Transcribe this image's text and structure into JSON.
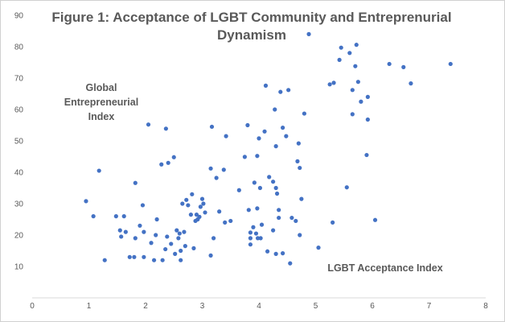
{
  "chart_data": {
    "type": "scatter",
    "title_lines": [
      "Figure 1: Acceptance of LGBT Community and Entreprenurial",
      "Dynamism"
    ],
    "ylabel_lines": [
      "Global",
      "Entrepreneurial",
      "Index"
    ],
    "xlabel": "LGBT Acceptance Index",
    "xlim": [
      0,
      8
    ],
    "ylim": [
      0,
      90
    ],
    "xticks": [
      "0",
      "1",
      "2",
      "3",
      "4",
      "5",
      "6",
      "7",
      "8"
    ],
    "yticks": [
      "10",
      "20",
      "30",
      "40",
      "50",
      "60",
      "70",
      "80",
      "90"
    ],
    "grid": false,
    "marker_color": "#4472c4",
    "points": [
      [
        0.95,
        30.8
      ],
      [
        1.08,
        26
      ],
      [
        1.18,
        40.5
      ],
      [
        1.28,
        12
      ],
      [
        1.48,
        26
      ],
      [
        1.55,
        21.5
      ],
      [
        1.57,
        19.5
      ],
      [
        1.62,
        26
      ],
      [
        1.65,
        21
      ],
      [
        1.72,
        13
      ],
      [
        1.8,
        13
      ],
      [
        1.82,
        36.6
      ],
      [
        1.82,
        19
      ],
      [
        1.9,
        23
      ],
      [
        1.95,
        29.5
      ],
      [
        1.97,
        13
      ],
      [
        1.97,
        21
      ],
      [
        2.05,
        55.2
      ],
      [
        2.1,
        17.5
      ],
      [
        2.15,
        12
      ],
      [
        2.18,
        20
      ],
      [
        2.2,
        25
      ],
      [
        2.28,
        42.5
      ],
      [
        2.3,
        12
      ],
      [
        2.35,
        15.5
      ],
      [
        2.36,
        53.9
      ],
      [
        2.38,
        19.5
      ],
      [
        2.4,
        43
      ],
      [
        2.45,
        17.2
      ],
      [
        2.5,
        44.8
      ],
      [
        2.52,
        14
      ],
      [
        2.55,
        21.5
      ],
      [
        2.58,
        19
      ],
      [
        2.6,
        20.5
      ],
      [
        2.62,
        15
      ],
      [
        2.62,
        12
      ],
      [
        2.65,
        30
      ],
      [
        2.68,
        21
      ],
      [
        2.7,
        16.5
      ],
      [
        2.72,
        31.2
      ],
      [
        2.75,
        29.5
      ],
      [
        2.8,
        26.5
      ],
      [
        2.82,
        33
      ],
      [
        2.85,
        15.8
      ],
      [
        2.88,
        24.5
      ],
      [
        2.9,
        26.5
      ],
      [
        2.92,
        25
      ],
      [
        2.95,
        25.8
      ],
      [
        2.97,
        29
      ],
      [
        3.0,
        31.5
      ],
      [
        3.02,
        30
      ],
      [
        3.05,
        27.2
      ],
      [
        3.15,
        13.5
      ],
      [
        3.15,
        41.2
      ],
      [
        3.17,
        54.5
      ],
      [
        3.2,
        19
      ],
      [
        3.25,
        38.2
      ],
      [
        3.3,
        27.5
      ],
      [
        3.38,
        40.8
      ],
      [
        3.4,
        24
      ],
      [
        3.42,
        51.5
      ],
      [
        3.5,
        24.5
      ],
      [
        3.65,
        34.3
      ],
      [
        3.75,
        44.9
      ],
      [
        3.8,
        55
      ],
      [
        3.82,
        28
      ],
      [
        3.85,
        19
      ],
      [
        3.85,
        20.8
      ],
      [
        3.85,
        17
      ],
      [
        3.9,
        22.5
      ],
      [
        3.92,
        36.7
      ],
      [
        3.95,
        20.5
      ],
      [
        3.97,
        28.5
      ],
      [
        3.97,
        45.2
      ],
      [
        3.98,
        19
      ],
      [
        4.0,
        50.8
      ],
      [
        4.02,
        35
      ],
      [
        4.03,
        19
      ],
      [
        4.05,
        23.3
      ],
      [
        4.1,
        53
      ],
      [
        4.12,
        67.6
      ],
      [
        4.15,
        14.8
      ],
      [
        4.18,
        38.5
      ],
      [
        4.25,
        21.5
      ],
      [
        4.25,
        37
      ],
      [
        4.28,
        60
      ],
      [
        4.3,
        14
      ],
      [
        4.3,
        48.3
      ],
      [
        4.3,
        35
      ],
      [
        4.32,
        33.2
      ],
      [
        4.35,
        28
      ],
      [
        4.35,
        25.5
      ],
      [
        4.38,
        65.6
      ],
      [
        4.42,
        14.2
      ],
      [
        4.42,
        54.2
      ],
      [
        4.48,
        51.5
      ],
      [
        4.52,
        66.2
      ],
      [
        4.55,
        11
      ],
      [
        4.58,
        25.5
      ],
      [
        4.65,
        24.5
      ],
      [
        4.68,
        43.5
      ],
      [
        4.7,
        49.2
      ],
      [
        4.72,
        41.4
      ],
      [
        4.72,
        20
      ],
      [
        4.75,
        31.5
      ],
      [
        4.8,
        58.7
      ],
      [
        4.88,
        84
      ],
      [
        5.05,
        16
      ],
      [
        5.25,
        68
      ],
      [
        5.3,
        24
      ],
      [
        5.32,
        68.5
      ],
      [
        5.42,
        75.8
      ],
      [
        5.45,
        79.7
      ],
      [
        5.55,
        35.2
      ],
      [
        5.6,
        78
      ],
      [
        5.65,
        58.5
      ],
      [
        5.65,
        66.2
      ],
      [
        5.7,
        73.8
      ],
      [
        5.72,
        80.6
      ],
      [
        5.75,
        68.8
      ],
      [
        5.8,
        62.5
      ],
      [
        5.9,
        45.5
      ],
      [
        5.92,
        56.8
      ],
      [
        5.92,
        64
      ],
      [
        6.05,
        24.8
      ],
      [
        6.3,
        74.5
      ],
      [
        6.55,
        73.5
      ],
      [
        6.68,
        68.3
      ],
      [
        7.38,
        74.5
      ]
    ]
  }
}
